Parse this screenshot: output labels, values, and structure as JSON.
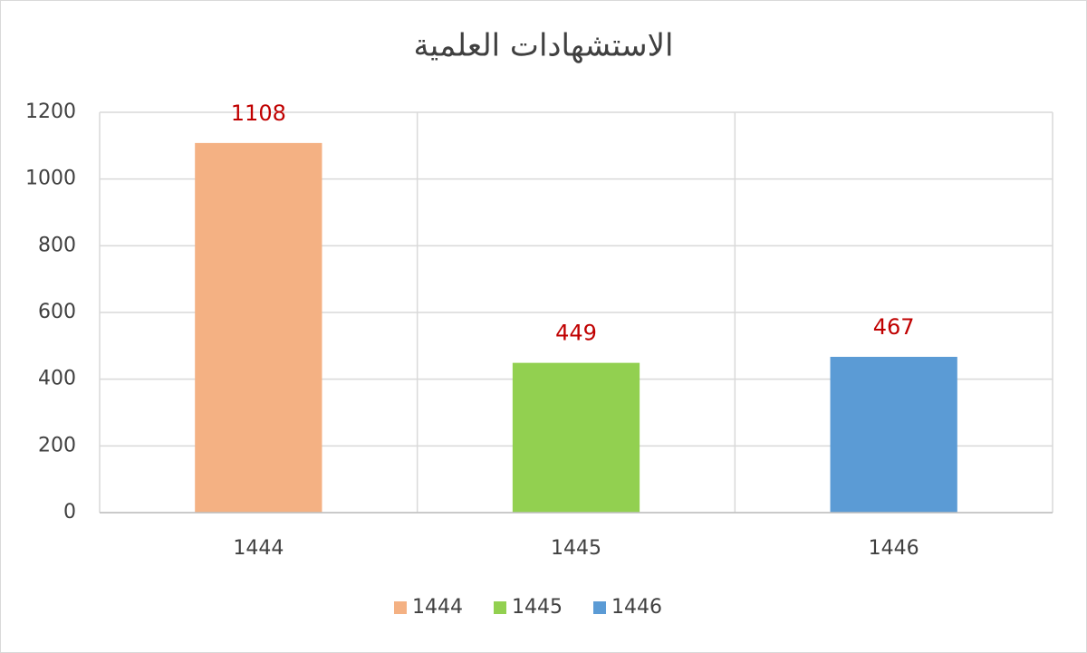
{
  "chart_data": {
    "type": "bar",
    "title": "الاستشهادات العلمية",
    "categories": [
      "1444",
      "1445",
      "1446"
    ],
    "values": [
      1108,
      449,
      467
    ],
    "colors": [
      "#f4b183",
      "#92d050",
      "#5b9bd5"
    ],
    "label_color": "#c00000",
    "ylim": [
      0,
      1200
    ],
    "yticks": [
      0,
      200,
      400,
      600,
      800,
      1000,
      1200
    ],
    "grid": true,
    "legend": "bottom"
  }
}
